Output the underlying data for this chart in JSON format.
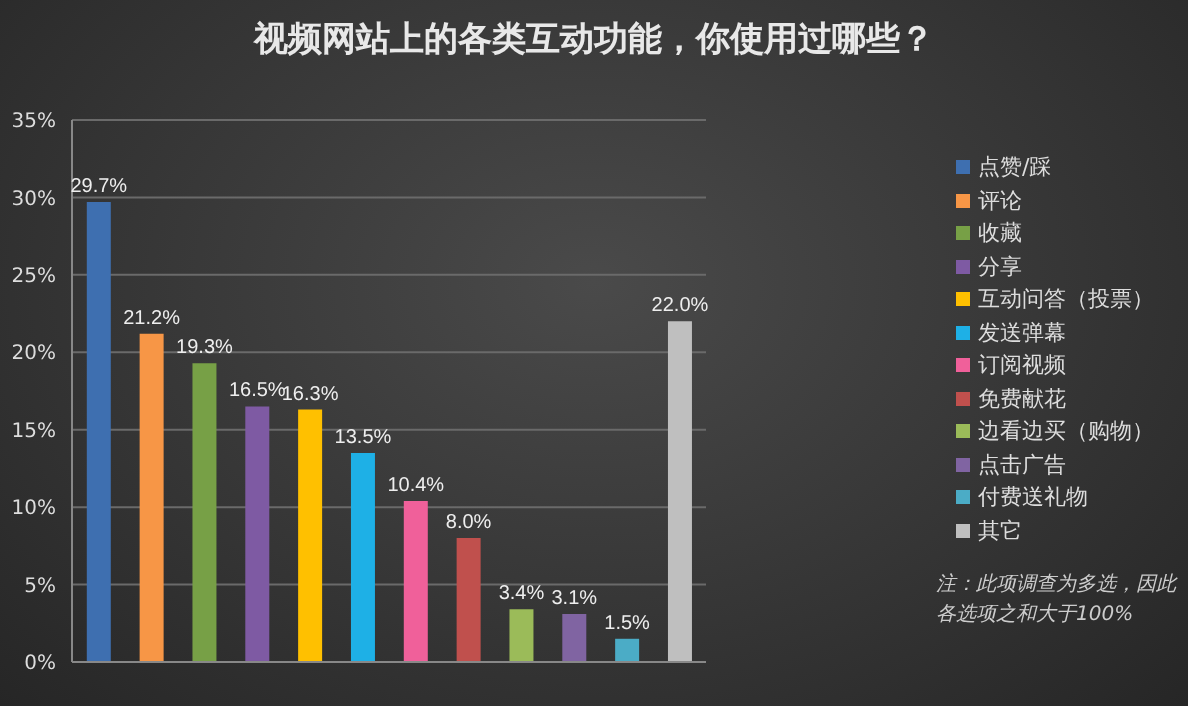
{
  "chart_data": {
    "type": "bar",
    "title": "视频网站上的各类互动功能，你使用过哪些？",
    "categories": [
      null,
      null,
      null,
      null,
      null,
      null,
      null,
      null,
      null,
      null,
      null,
      null
    ],
    "stacked": true,
    "series": [
      {
        "name": "点赞/踩",
        "color": "#3e6fb0",
        "values": [
          29.7,
          null,
          null,
          null,
          null,
          null,
          null,
          null,
          null,
          null,
          null,
          null
        ],
        "value_labels": [
          "29.7%",
          null,
          null,
          null,
          null,
          null,
          null,
          null,
          null,
          null,
          null,
          null
        ]
      },
      {
        "name": "评论",
        "color": "#f79646",
        "values": [
          null,
          21.2,
          null,
          null,
          null,
          null,
          null,
          null,
          null,
          null,
          null,
          null
        ],
        "value_labels": [
          null,
          "21.2%",
          null,
          null,
          null,
          null,
          null,
          null,
          null,
          null,
          null,
          null
        ]
      },
      {
        "name": "收藏",
        "color": "#77a046",
        "values": [
          null,
          null,
          19.3,
          null,
          null,
          null,
          null,
          null,
          null,
          null,
          null,
          null
        ],
        "value_labels": [
          null,
          null,
          "19.3%",
          null,
          null,
          null,
          null,
          null,
          null,
          null,
          null,
          null
        ]
      },
      {
        "name": "分享",
        "color": "#7e5aa3",
        "values": [
          null,
          null,
          null,
          16.5,
          null,
          null,
          null,
          null,
          null,
          null,
          null,
          null
        ],
        "value_labels": [
          null,
          null,
          null,
          "16.5%",
          null,
          null,
          null,
          null,
          null,
          null,
          null,
          null
        ]
      },
      {
        "name": "互动问答（投票）",
        "color": "#ffc000",
        "values": [
          null,
          null,
          null,
          null,
          16.3,
          null,
          null,
          null,
          null,
          null,
          null,
          null
        ],
        "value_labels": [
          null,
          null,
          null,
          null,
          "16.3%",
          null,
          null,
          null,
          null,
          null,
          null,
          null
        ]
      },
      {
        "name": "发送弹幕",
        "color": "#1eb0e6",
        "values": [
          null,
          null,
          null,
          null,
          null,
          13.5,
          null,
          null,
          null,
          null,
          null,
          null
        ],
        "value_labels": [
          null,
          null,
          null,
          null,
          null,
          "13.5%",
          null,
          null,
          null,
          null,
          null,
          null
        ]
      },
      {
        "name": "订阅视频",
        "color": "#f0609a",
        "values": [
          null,
          null,
          null,
          null,
          null,
          null,
          10.4,
          null,
          null,
          null,
          null,
          null
        ],
        "value_labels": [
          null,
          null,
          null,
          null,
          null,
          null,
          "10.4%",
          null,
          null,
          null,
          null,
          null
        ]
      },
      {
        "name": "免费献花",
        "color": "#c0504d",
        "values": [
          null,
          null,
          null,
          null,
          null,
          null,
          null,
          8.0,
          null,
          null,
          null,
          null
        ],
        "value_labels": [
          null,
          null,
          null,
          null,
          null,
          null,
          null,
          "8.0%",
          null,
          null,
          null,
          null
        ]
      },
      {
        "name": "边看边买（购物）",
        "color": "#9bbb59",
        "values": [
          null,
          null,
          null,
          null,
          null,
          null,
          null,
          null,
          3.4,
          null,
          null,
          null
        ],
        "value_labels": [
          null,
          null,
          null,
          null,
          null,
          null,
          null,
          null,
          "3.4%",
          null,
          null,
          null
        ]
      },
      {
        "name": "点击广告",
        "color": "#8064a2",
        "values": [
          null,
          null,
          null,
          null,
          null,
          null,
          null,
          null,
          null,
          3.1,
          null,
          null
        ],
        "value_labels": [
          null,
          null,
          null,
          null,
          null,
          null,
          null,
          null,
          null,
          "3.1%",
          null,
          null
        ]
      },
      {
        "name": "付费送礼物",
        "color": "#4bacc6",
        "values": [
          null,
          null,
          null,
          null,
          null,
          null,
          null,
          null,
          null,
          null,
          1.5,
          null
        ],
        "value_labels": [
          null,
          null,
          null,
          null,
          null,
          null,
          null,
          null,
          null,
          null,
          "1.5%",
          null
        ]
      },
      {
        "name": "其它",
        "color": "#bfbfbf",
        "values": [
          null,
          null,
          null,
          null,
          null,
          null,
          null,
          null,
          null,
          null,
          null,
          22.0
        ],
        "value_labels": [
          null,
          null,
          null,
          null,
          null,
          null,
          null,
          null,
          null,
          null,
          null,
          "22.0%"
        ]
      }
    ],
    "ylim": [
      0,
      35
    ],
    "yticks": [
      {
        "value": 0,
        "label": "0%"
      },
      {
        "value": 5,
        "label": "5%"
      },
      {
        "value": 10,
        "label": "10%"
      },
      {
        "value": 15,
        "label": "15%"
      },
      {
        "value": 20,
        "label": "20%"
      },
      {
        "value": 25,
        "label": "25%"
      },
      {
        "value": 30,
        "label": "30%"
      },
      {
        "value": 35,
        "label": "35%"
      }
    ],
    "grid": "y",
    "legend": "right",
    "tick_labels": "y",
    "annotations": [
      "注：此项调查为多选，因此各选项之和大于100%"
    ]
  }
}
